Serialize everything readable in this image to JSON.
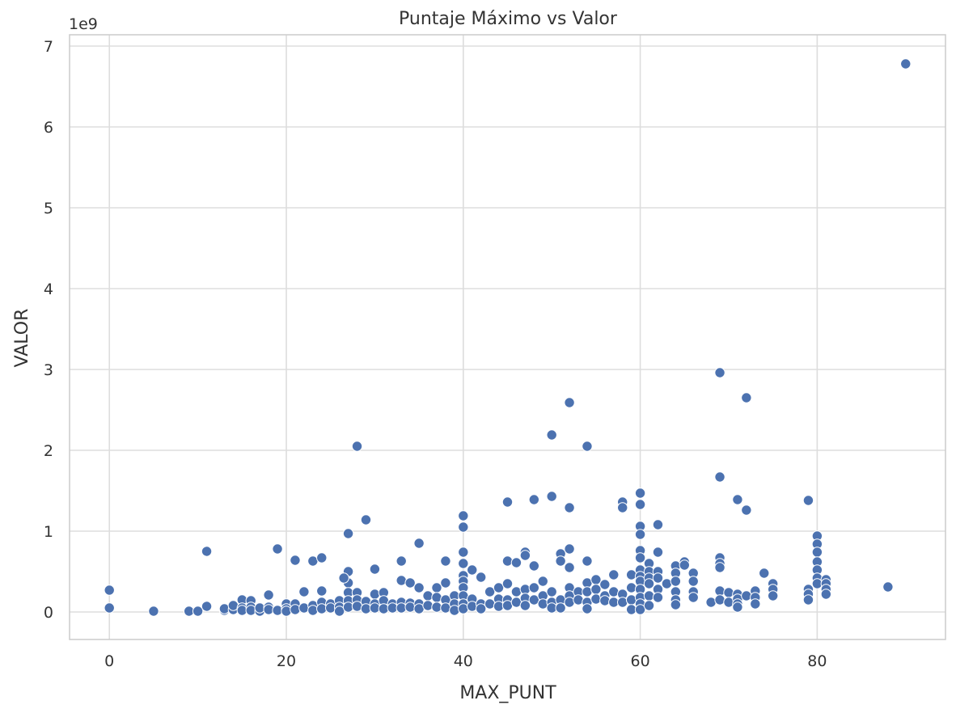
{
  "chart_data": {
    "type": "scatter",
    "title": "Puntaje Máximo vs Valor",
    "xlabel": "MAX_PUNT",
    "ylabel": "VALOR",
    "y_offset_label": "1e9",
    "xlim": [
      -4.5,
      94.5
    ],
    "ylim": [
      -0.34,
      7.14
    ],
    "xticks": [
      0,
      20,
      40,
      60,
      80
    ],
    "xtick_labels": [
      "0",
      "20",
      "40",
      "60",
      "80"
    ],
    "yticks": [
      0,
      1,
      2,
      3,
      4,
      5,
      6,
      7
    ],
    "ytick_labels": [
      "0",
      "1",
      "2",
      "3",
      "4",
      "5",
      "6",
      "7"
    ],
    "grid": true,
    "marker_color": "#4c72b0",
    "series": [
      {
        "name": "",
        "points": [
          [
            0,
            0.27
          ],
          [
            0,
            0.05
          ],
          [
            5,
            0.01
          ],
          [
            9,
            0.01
          ],
          [
            10,
            0.01
          ],
          [
            11,
            0.75
          ],
          [
            11,
            0.07
          ],
          [
            13,
            0.02
          ],
          [
            13,
            0.04
          ],
          [
            14,
            0.03
          ],
          [
            14,
            0.08
          ],
          [
            15,
            0.15
          ],
          [
            15,
            0.05
          ],
          [
            15,
            0.02
          ],
          [
            16,
            0.14
          ],
          [
            16,
            0.06
          ],
          [
            16,
            0.02
          ],
          [
            17,
            0.01
          ],
          [
            17,
            0.05
          ],
          [
            18,
            0.21
          ],
          [
            18,
            0.06
          ],
          [
            18,
            0.03
          ],
          [
            19,
            0.78
          ],
          [
            19,
            0.02
          ],
          [
            20,
            0.1
          ],
          [
            20,
            0.04
          ],
          [
            20,
            0.01
          ],
          [
            21,
            0.64
          ],
          [
            21,
            0.1
          ],
          [
            21,
            0.03
          ],
          [
            22,
            0.25
          ],
          [
            22,
            0.05
          ],
          [
            23,
            0.63
          ],
          [
            23,
            0.08
          ],
          [
            23,
            0.02
          ],
          [
            24,
            0.67
          ],
          [
            24,
            0.26
          ],
          [
            24,
            0.12
          ],
          [
            24,
            0.04
          ],
          [
            25,
            0.1
          ],
          [
            25,
            0.05
          ],
          [
            26,
            0.14
          ],
          [
            26,
            0.06
          ],
          [
            26,
            0.01
          ],
          [
            27,
            0.97
          ],
          [
            27,
            0.5
          ],
          [
            27,
            0.36
          ],
          [
            27,
            0.24
          ],
          [
            27,
            0.14
          ],
          [
            27,
            0.06
          ],
          [
            26.5,
            0.42
          ],
          [
            28,
            2.05
          ],
          [
            28,
            0.24
          ],
          [
            28,
            0.15
          ],
          [
            28,
            0.07
          ],
          [
            29,
            1.14
          ],
          [
            29,
            0.13
          ],
          [
            29,
            0.04
          ],
          [
            30,
            0.53
          ],
          [
            30,
            0.22
          ],
          [
            30,
            0.1
          ],
          [
            30,
            0.05
          ],
          [
            31,
            0.24
          ],
          [
            31,
            0.14
          ],
          [
            31,
            0.04
          ],
          [
            32,
            0.1
          ],
          [
            32,
            0.05
          ],
          [
            33,
            0.63
          ],
          [
            33,
            0.39
          ],
          [
            33,
            0.12
          ],
          [
            33,
            0.05
          ],
          [
            34,
            0.36
          ],
          [
            34,
            0.11
          ],
          [
            34,
            0.06
          ],
          [
            35,
            0.85
          ],
          [
            35,
            0.3
          ],
          [
            35,
            0.1
          ],
          [
            35,
            0.04
          ],
          [
            36,
            0.2
          ],
          [
            36,
            0.08
          ],
          [
            37,
            0.3
          ],
          [
            37,
            0.18
          ],
          [
            37,
            0.06
          ],
          [
            38,
            0.63
          ],
          [
            38,
            0.36
          ],
          [
            38,
            0.15
          ],
          [
            38,
            0.05
          ],
          [
            39,
            0.2
          ],
          [
            39,
            0.1
          ],
          [
            39,
            0.02
          ],
          [
            40,
            1.19
          ],
          [
            40,
            1.05
          ],
          [
            40,
            0.74
          ],
          [
            40,
            0.6
          ],
          [
            40,
            0.45
          ],
          [
            40,
            0.38
          ],
          [
            40,
            0.3
          ],
          [
            40,
            0.2
          ],
          [
            40,
            0.1
          ],
          [
            40,
            0.04
          ],
          [
            41,
            0.52
          ],
          [
            41,
            0.16
          ],
          [
            41,
            0.07
          ],
          [
            42,
            0.43
          ],
          [
            42,
            0.1
          ],
          [
            42,
            0.04
          ],
          [
            43,
            0.25
          ],
          [
            43,
            0.1
          ],
          [
            44,
            0.3
          ],
          [
            44,
            0.16
          ],
          [
            44,
            0.07
          ],
          [
            45,
            1.36
          ],
          [
            45,
            0.63
          ],
          [
            45,
            0.35
          ],
          [
            45,
            0.15
          ],
          [
            45,
            0.08
          ],
          [
            46,
            0.61
          ],
          [
            46,
            0.25
          ],
          [
            46,
            0.12
          ],
          [
            47,
            0.74
          ],
          [
            47,
            0.7
          ],
          [
            47,
            0.28
          ],
          [
            47,
            0.17
          ],
          [
            47,
            0.08
          ],
          [
            48,
            1.39
          ],
          [
            48,
            0.57
          ],
          [
            48,
            0.3
          ],
          [
            48,
            0.15
          ],
          [
            49,
            0.38
          ],
          [
            49,
            0.2
          ],
          [
            49,
            0.1
          ],
          [
            50,
            2.19
          ],
          [
            50,
            1.43
          ],
          [
            50,
            0.25
          ],
          [
            50,
            0.12
          ],
          [
            50,
            0.05
          ],
          [
            51,
            0.72
          ],
          [
            51,
            0.63
          ],
          [
            51,
            0.15
          ],
          [
            51,
            0.05
          ],
          [
            52,
            2.59
          ],
          [
            52,
            1.29
          ],
          [
            52,
            0.78
          ],
          [
            52,
            0.55
          ],
          [
            52,
            0.3
          ],
          [
            52,
            0.2
          ],
          [
            52,
            0.12
          ],
          [
            53,
            0.25
          ],
          [
            53,
            0.15
          ],
          [
            54,
            2.05
          ],
          [
            54,
            0.63
          ],
          [
            54,
            0.36
          ],
          [
            54,
            0.25
          ],
          [
            54,
            0.12
          ],
          [
            54,
            0.04
          ],
          [
            55,
            0.4
          ],
          [
            55,
            0.28
          ],
          [
            55,
            0.16
          ],
          [
            56,
            0.34
          ],
          [
            56,
            0.2
          ],
          [
            56,
            0.14
          ],
          [
            57,
            0.46
          ],
          [
            57,
            0.25
          ],
          [
            57,
            0.12
          ],
          [
            58,
            1.36
          ],
          [
            58,
            1.29
          ],
          [
            58,
            0.22
          ],
          [
            58,
            0.12
          ],
          [
            59,
            0.46
          ],
          [
            59,
            0.3
          ],
          [
            59,
            0.15
          ],
          [
            59,
            0.03
          ],
          [
            60,
            1.47
          ],
          [
            60,
            1.33
          ],
          [
            60,
            1.06
          ],
          [
            60,
            0.96
          ],
          [
            60,
            0.76
          ],
          [
            60,
            0.67
          ],
          [
            60,
            0.52
          ],
          [
            60,
            0.44
          ],
          [
            60,
            0.38
          ],
          [
            60,
            0.28
          ],
          [
            60,
            0.18
          ],
          [
            60,
            0.1
          ],
          [
            60,
            0.03
          ],
          [
            61,
            0.6
          ],
          [
            61,
            0.5
          ],
          [
            61,
            0.42
          ],
          [
            61,
            0.35
          ],
          [
            61,
            0.2
          ],
          [
            61,
            0.08
          ],
          [
            62,
            1.08
          ],
          [
            62,
            0.74
          ],
          [
            62,
            0.5
          ],
          [
            62,
            0.42
          ],
          [
            62,
            0.28
          ],
          [
            62,
            0.18
          ],
          [
            63,
            0.35
          ],
          [
            64,
            0.57
          ],
          [
            64,
            0.48
          ],
          [
            64,
            0.38
          ],
          [
            64,
            0.25
          ],
          [
            64,
            0.15
          ],
          [
            64,
            0.09
          ],
          [
            65,
            0.62
          ],
          [
            65,
            0.58
          ],
          [
            66,
            0.48
          ],
          [
            66,
            0.38
          ],
          [
            66,
            0.25
          ],
          [
            66,
            0.18
          ],
          [
            68,
            0.12
          ],
          [
            69,
            2.96
          ],
          [
            69,
            1.67
          ],
          [
            69,
            0.67
          ],
          [
            69,
            0.6
          ],
          [
            69,
            0.55
          ],
          [
            69,
            0.26
          ],
          [
            69,
            0.15
          ],
          [
            70,
            0.24
          ],
          [
            70,
            0.12
          ],
          [
            71,
            1.39
          ],
          [
            71,
            0.22
          ],
          [
            71,
            0.16
          ],
          [
            71,
            0.1
          ],
          [
            71,
            0.06
          ],
          [
            72,
            2.65
          ],
          [
            72,
            1.26
          ],
          [
            72,
            0.2
          ],
          [
            73,
            0.26
          ],
          [
            73,
            0.18
          ],
          [
            73,
            0.1
          ],
          [
            74,
            0.48
          ],
          [
            75,
            0.35
          ],
          [
            75,
            0.28
          ],
          [
            75,
            0.2
          ],
          [
            79,
            1.38
          ],
          [
            79,
            0.28
          ],
          [
            79,
            0.22
          ],
          [
            79,
            0.15
          ],
          [
            80,
            0.94
          ],
          [
            80,
            0.84
          ],
          [
            80,
            0.74
          ],
          [
            80,
            0.62
          ],
          [
            80,
            0.52
          ],
          [
            80,
            0.42
          ],
          [
            80,
            0.35
          ],
          [
            81,
            0.4
          ],
          [
            81,
            0.35
          ],
          [
            81,
            0.28
          ],
          [
            81,
            0.22
          ],
          [
            88,
            0.31
          ],
          [
            90,
            6.78
          ]
        ]
      }
    ]
  }
}
